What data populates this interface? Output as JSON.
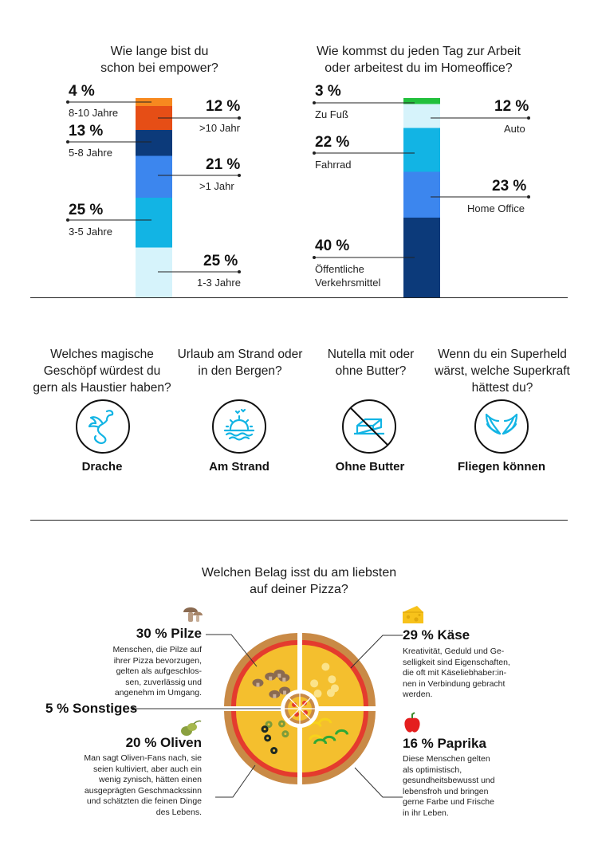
{
  "chart_data": [
    {
      "type": "bar",
      "title": "Wie lange bist du\nschon bei empower?",
      "stacked": true,
      "categories": [
        "1-3 Jahre",
        "3-5 Jahre",
        ">1 Jahr",
        "5-8 Jahre",
        ">10 Jahr",
        "8-10 Jahre"
      ],
      "values": [
        25,
        25,
        21,
        13,
        12,
        4
      ],
      "colors": [
        "#d6f3fb",
        "#12b4e4",
        "#3c86ee",
        "#0c3a7a",
        "#e64e16",
        "#f7891f"
      ]
    },
    {
      "type": "bar",
      "title": "Wie kommst du jeden Tag zur Arbeit\noder arbeitest du im Homeoffice?",
      "stacked": true,
      "categories": [
        "Öffentliche\nVerkehrsmittel",
        "Home Office",
        "Fahrrad",
        "Auto",
        "Zu Fuß"
      ],
      "values": [
        40,
        23,
        22,
        12,
        3
      ],
      "colors": [
        "#0c3a7a",
        "#3c86ee",
        "#12b4e4",
        "#d6f3fb",
        "#22c03c"
      ]
    },
    {
      "type": "pie",
      "title": "Welchen Belag isst du am liebsten\nauf deiner Pizza?",
      "categories": [
        "Pilze",
        "Käse",
        "Paprika",
        "Oliven",
        "Sonstiges"
      ],
      "values": [
        30,
        29,
        16,
        20,
        5
      ]
    }
  ],
  "labels1": [
    {
      "pct": "4 %",
      "text": "8-10 Jahre"
    },
    {
      "pct": "13 %",
      "text": "5-8 Jahre"
    },
    {
      "pct": "25 %",
      "text": "3-5 Jahre"
    },
    {
      "pct": "12 %",
      "text": ">10 Jahr"
    },
    {
      "pct": "21 %",
      "text": ">1 Jahr"
    },
    {
      "pct": "25 %",
      "text": "1-3 Jahre"
    }
  ],
  "labels2": [
    {
      "pct": "3 %",
      "text": "Zu Fuß"
    },
    {
      "pct": "22 %",
      "text": "Fahrrad"
    },
    {
      "pct": "40 %",
      "text": "Öffentliche\nVerkehrsmittel"
    },
    {
      "pct": "12 %",
      "text": "Auto"
    },
    {
      "pct": "23 %",
      "text": "Home Office"
    }
  ],
  "quiz": [
    {
      "question": "Welches magische\nGeschöpf würdest du\ngern als Haustier haben?",
      "answer": "Drache",
      "icon": "dragon-icon"
    },
    {
      "question": "Urlaub am Strand oder\nin den Bergen?",
      "answer": "Am Strand",
      "icon": "beach-sunset-icon"
    },
    {
      "question": "Nutella mit oder\nohne Butter?",
      "answer": "Ohne Butter",
      "icon": "no-butter-icon"
    },
    {
      "question": "Wenn du ein Superheld\nwärst, welche Superkraft\nhättest du?",
      "answer": "Fliegen können",
      "icon": "wings-icon"
    }
  ],
  "pizza": {
    "pilze": {
      "title": "30 % Pilze",
      "desc": "Menschen, die Pilze auf\nihrer Pizza bevorzugen,\ngelten als aufgeschlos-\nsen, zuverlässig und\nangenehm im Umgang."
    },
    "kaese": {
      "title": "29 % Käse",
      "desc": "Kreativität, Geduld und Ge-\nselligkeit sind Eigenschaften,\ndie oft mit Käseliebhaber:in-\nnen in Verbindung gebracht\nwerden."
    },
    "sonstiges": {
      "title": "5 % Sonstiges"
    },
    "oliven": {
      "title": "20 % Oliven",
      "desc": "Man sagt Oliven-Fans nach, sie\nseien kultiviert, aber auch ein\nwenig zynisch, hätten einen\nausgeprägten Geschmackssinn\nund schätzten die feinen Dinge\ndes Lebens."
    },
    "paprika": {
      "title": "16 % Paprika",
      "desc": "Diese Menschen gelten\nals optimistisch,\ngesundheitsbewusst und\nlebensfroh und bringen\ngerne Farbe und Frische\nin ihr Leben."
    }
  }
}
